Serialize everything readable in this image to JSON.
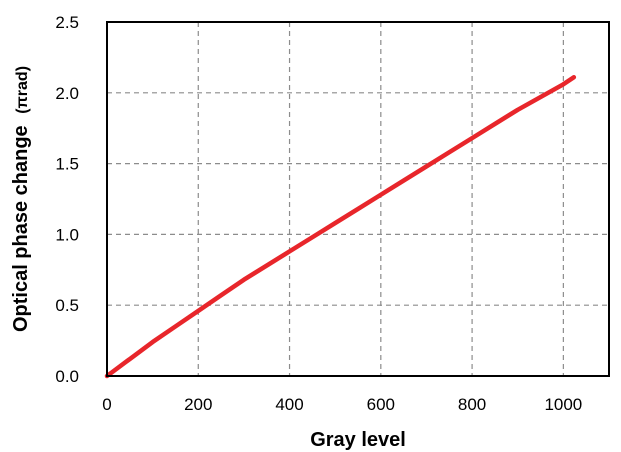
{
  "chart_data": {
    "type": "line",
    "xlabel": "Gray level",
    "ylabel": "Optical phase change",
    "ylabel_unit": "(πrad)",
    "xlim": [
      0,
      1100
    ],
    "ylim": [
      0,
      2.5
    ],
    "x_ticks": [
      "0",
      "200",
      "400",
      "600",
      "800",
      "1000"
    ],
    "y_ticks": [
      "0.0",
      "0.5",
      "1.0",
      "1.5",
      "2.0",
      "2.5"
    ],
    "grid": true,
    "series": [
      {
        "color": "#e8262b",
        "x": [
          0,
          50,
          100,
          150,
          200,
          250,
          300,
          350,
          400,
          450,
          500,
          550,
          600,
          650,
          700,
          750,
          800,
          850,
          900,
          950,
          1000,
          1023
        ],
        "y": [
          0.0,
          0.12,
          0.24,
          0.35,
          0.46,
          0.57,
          0.68,
          0.78,
          0.88,
          0.98,
          1.08,
          1.18,
          1.28,
          1.38,
          1.48,
          1.58,
          1.68,
          1.78,
          1.88,
          1.97,
          2.06,
          2.11
        ]
      }
    ]
  }
}
